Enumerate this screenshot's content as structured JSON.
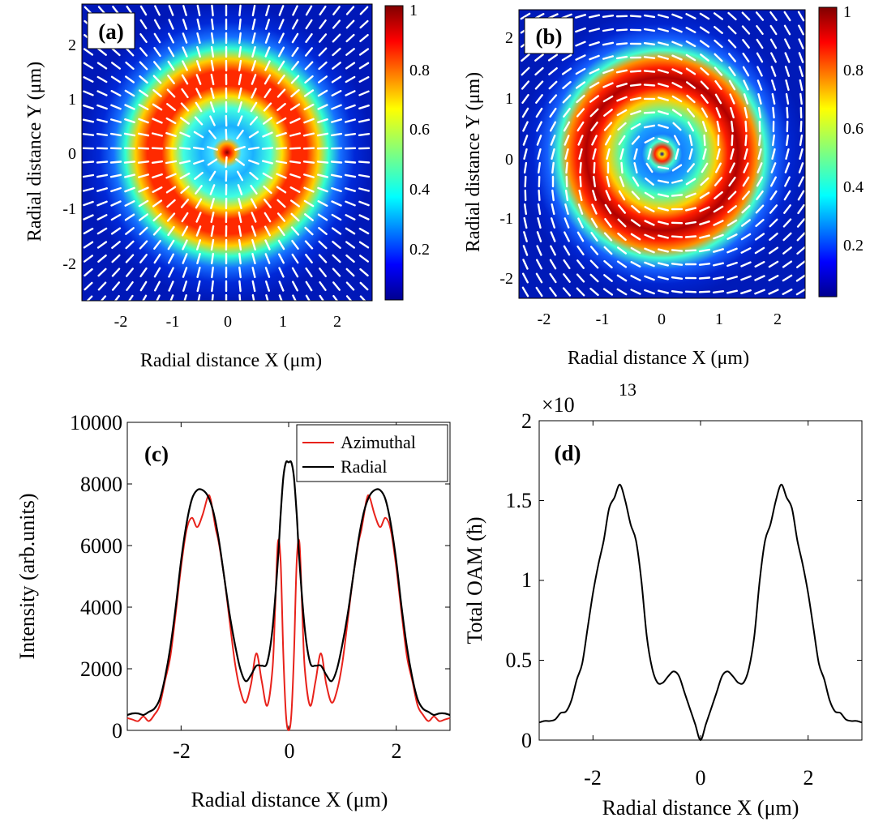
{
  "figure": {
    "panel_a": {
      "label": "(a)",
      "xlabel": "Radial distance X (μm)",
      "ylabel": "Radial distance Y (μm)",
      "x_ticks": [
        "-2",
        "-1",
        "0",
        "1",
        "2"
      ],
      "y_ticks": [
        "2",
        "1",
        "0",
        "-1",
        "-2"
      ],
      "colorbar_ticks": [
        "1",
        "0.8",
        "0.6",
        "0.4",
        "0.2"
      ]
    },
    "panel_b": {
      "label": "(b)",
      "xlabel": "Radial distance X (μm)",
      "ylabel": "Radial distance Y (μm)",
      "x_ticks": [
        "-2",
        "-1",
        "0",
        "1",
        "2"
      ],
      "y_ticks": [
        "2",
        "1",
        "0",
        "-1",
        "-2"
      ],
      "colorbar_ticks": [
        "1",
        "0.8",
        "0.6",
        "0.4",
        "0.2"
      ]
    },
    "panel_c": {
      "label": "(c)",
      "xlabel": "Radial distance X (μm)",
      "ylabel": "Intensity (arb.units)",
      "x_ticks": [
        "-2",
        "0",
        "2"
      ],
      "y_ticks": [
        "10000",
        "8000",
        "6000",
        "4000",
        "2000",
        "0"
      ],
      "legend": [
        "Azimuthal",
        "Radial"
      ]
    },
    "panel_d": {
      "label": "(d)",
      "xlabel": "Radial distance X (μm)",
      "ylabel": "Total OAM (ħ)",
      "x_ticks": [
        "-2",
        "0",
        "2"
      ],
      "y_ticks": [
        "2",
        "1.5",
        "1",
        "0.5",
        "0"
      ],
      "exponent_base": "×10",
      "exponent_power": "13"
    }
  },
  "chart_data": [
    {
      "type": "heatmap",
      "title": "(a)",
      "description_field": "Radial polarization intensity map with vector field arrows",
      "xlabel": "Radial distance X (μm)",
      "ylabel": "Radial distance Y (μm)",
      "xlim": [
        -2.65,
        2.65
      ],
      "ylim": [
        -2.65,
        2.65
      ],
      "colorbar_range": [
        0,
        1
      ],
      "ring_peak_radius": 1.45,
      "center_peak_value": 1.0,
      "ring_peak_value": 0.95,
      "arrow_pattern": "radial"
    },
    {
      "type": "heatmap",
      "title": "(b)",
      "xlabel": "Radial distance X (μm)",
      "ylabel": "Radial distance Y (μm)",
      "xlim": [
        -2.5,
        2.5
      ],
      "ylim": [
        -2.5,
        2.5
      ],
      "colorbar_range": [
        0,
        1
      ],
      "ring_peak_radius": 1.35,
      "inner_ring_radius": 0.35,
      "ring_peak_value": 1.0,
      "arrow_pattern": "azimuthal"
    },
    {
      "type": "line",
      "title": "(c)",
      "xlabel": "Radial distance X (μm)",
      "ylabel": "Intensity (arb.units)",
      "xlim": [
        -3,
        3
      ],
      "ylim": [
        0,
        10000
      ],
      "series": [
        {
          "name": "Azimuthal",
          "color": "#e8221b",
          "x": [
            -3.0,
            -2.9,
            -2.8,
            -2.7,
            -2.6,
            -2.5,
            -2.4,
            -2.3,
            -2.2,
            -2.1,
            -2.0,
            -1.9,
            -1.8,
            -1.7,
            -1.6,
            -1.5,
            -1.45,
            -1.4,
            -1.35,
            -1.3,
            -1.2,
            -1.1,
            -1.0,
            -0.9,
            -0.8,
            -0.7,
            -0.6,
            -0.5,
            -0.4,
            -0.3,
            -0.25,
            -0.2,
            -0.15,
            -0.1,
            -0.05,
            0.0,
            0.05,
            0.1,
            0.15,
            0.2,
            0.25,
            0.3,
            0.4,
            0.5,
            0.6,
            0.7,
            0.8,
            0.9,
            1.0,
            1.1,
            1.2,
            1.3,
            1.35,
            1.4,
            1.45,
            1.5,
            1.6,
            1.7,
            1.8,
            1.9,
            2.0,
            2.1,
            2.2,
            2.3,
            2.4,
            2.5,
            2.6,
            2.7,
            2.8,
            2.9,
            3.0
          ],
          "values": [
            400,
            350,
            300,
            450,
            300,
            500,
            800,
            1600,
            2400,
            3800,
            5300,
            6500,
            6900,
            6600,
            7000,
            7600,
            7500,
            7000,
            6500,
            6100,
            5000,
            3600,
            2200,
            1300,
            900,
            1500,
            2500,
            1600,
            800,
            2000,
            4000,
            6100,
            5500,
            2500,
            500,
            0,
            500,
            2500,
            5500,
            6100,
            4000,
            2000,
            800,
            1600,
            2500,
            1500,
            900,
            1300,
            2200,
            3600,
            5000,
            6100,
            6500,
            7000,
            7500,
            7600,
            7000,
            6600,
            6900,
            6500,
            5300,
            3800,
            2400,
            1600,
            800,
            500,
            300,
            450,
            300,
            350,
            400
          ]
        },
        {
          "name": "Radial",
          "color": "#000000",
          "x": [
            -3.0,
            -2.9,
            -2.8,
            -2.7,
            -2.6,
            -2.5,
            -2.4,
            -2.3,
            -2.2,
            -2.1,
            -2.0,
            -1.9,
            -1.8,
            -1.7,
            -1.6,
            -1.5,
            -1.4,
            -1.3,
            -1.2,
            -1.1,
            -1.0,
            -0.9,
            -0.8,
            -0.7,
            -0.6,
            -0.5,
            -0.4,
            -0.3,
            -0.2,
            -0.15,
            -0.1,
            -0.05,
            0.0,
            0.05,
            0.1,
            0.15,
            0.2,
            0.3,
            0.4,
            0.5,
            0.6,
            0.7,
            0.8,
            0.9,
            1.0,
            1.1,
            1.2,
            1.3,
            1.4,
            1.5,
            1.6,
            1.7,
            1.8,
            1.9,
            2.0,
            2.1,
            2.2,
            2.3,
            2.4,
            2.5,
            2.6,
            2.7,
            2.8,
            2.9,
            3.0
          ],
          "values": [
            500,
            550,
            550,
            500,
            600,
            700,
            1000,
            1700,
            2700,
            4000,
            5500,
            6700,
            7500,
            7800,
            7800,
            7600,
            7100,
            6200,
            5000,
            3800,
            2800,
            2000,
            1600,
            1800,
            2100,
            2100,
            2200,
            3300,
            5500,
            7000,
            8200,
            8700,
            8700,
            8700,
            8200,
            7000,
            5500,
            3300,
            2200,
            2100,
            2100,
            1800,
            1600,
            2000,
            2800,
            3800,
            5000,
            6200,
            7100,
            7600,
            7800,
            7800,
            7500,
            6700,
            5500,
            4000,
            2700,
            1700,
            1000,
            700,
            600,
            500,
            550,
            550,
            500
          ]
        }
      ]
    },
    {
      "type": "line",
      "title": "(d)",
      "xlabel": "Radial distance X (μm)",
      "ylabel": "Total OAM (ħ)",
      "xlim": [
        -3,
        3
      ],
      "ylim": [
        0,
        2
      ],
      "y_multiplier": "1e13",
      "series": [
        {
          "name": "Total OAM",
          "color": "#000000",
          "x": [
            -3.0,
            -2.9,
            -2.8,
            -2.7,
            -2.6,
            -2.5,
            -2.4,
            -2.3,
            -2.2,
            -2.1,
            -2.0,
            -1.9,
            -1.8,
            -1.7,
            -1.6,
            -1.5,
            -1.4,
            -1.3,
            -1.2,
            -1.1,
            -1.0,
            -0.9,
            -0.8,
            -0.7,
            -0.6,
            -0.5,
            -0.4,
            -0.3,
            -0.2,
            -0.1,
            0.0,
            0.1,
            0.2,
            0.3,
            0.4,
            0.5,
            0.6,
            0.7,
            0.8,
            0.9,
            1.0,
            1.1,
            1.2,
            1.3,
            1.4,
            1.5,
            1.6,
            1.7,
            1.8,
            1.9,
            2.0,
            2.1,
            2.2,
            2.3,
            2.4,
            2.5,
            2.6,
            2.7,
            2.8,
            2.9,
            3.0
          ],
          "values": [
            0.11,
            0.12,
            0.12,
            0.13,
            0.17,
            0.18,
            0.25,
            0.38,
            0.48,
            0.7,
            0.92,
            1.1,
            1.25,
            1.45,
            1.52,
            1.6,
            1.5,
            1.35,
            1.25,
            1.0,
            0.65,
            0.45,
            0.36,
            0.36,
            0.4,
            0.43,
            0.4,
            0.3,
            0.2,
            0.1,
            0.0,
            0.1,
            0.2,
            0.3,
            0.4,
            0.43,
            0.4,
            0.36,
            0.36,
            0.45,
            0.65,
            1.0,
            1.25,
            1.35,
            1.5,
            1.6,
            1.52,
            1.45,
            1.25,
            1.1,
            0.92,
            0.7,
            0.48,
            0.38,
            0.25,
            0.18,
            0.17,
            0.13,
            0.12,
            0.12,
            0.11
          ]
        }
      ]
    }
  ]
}
